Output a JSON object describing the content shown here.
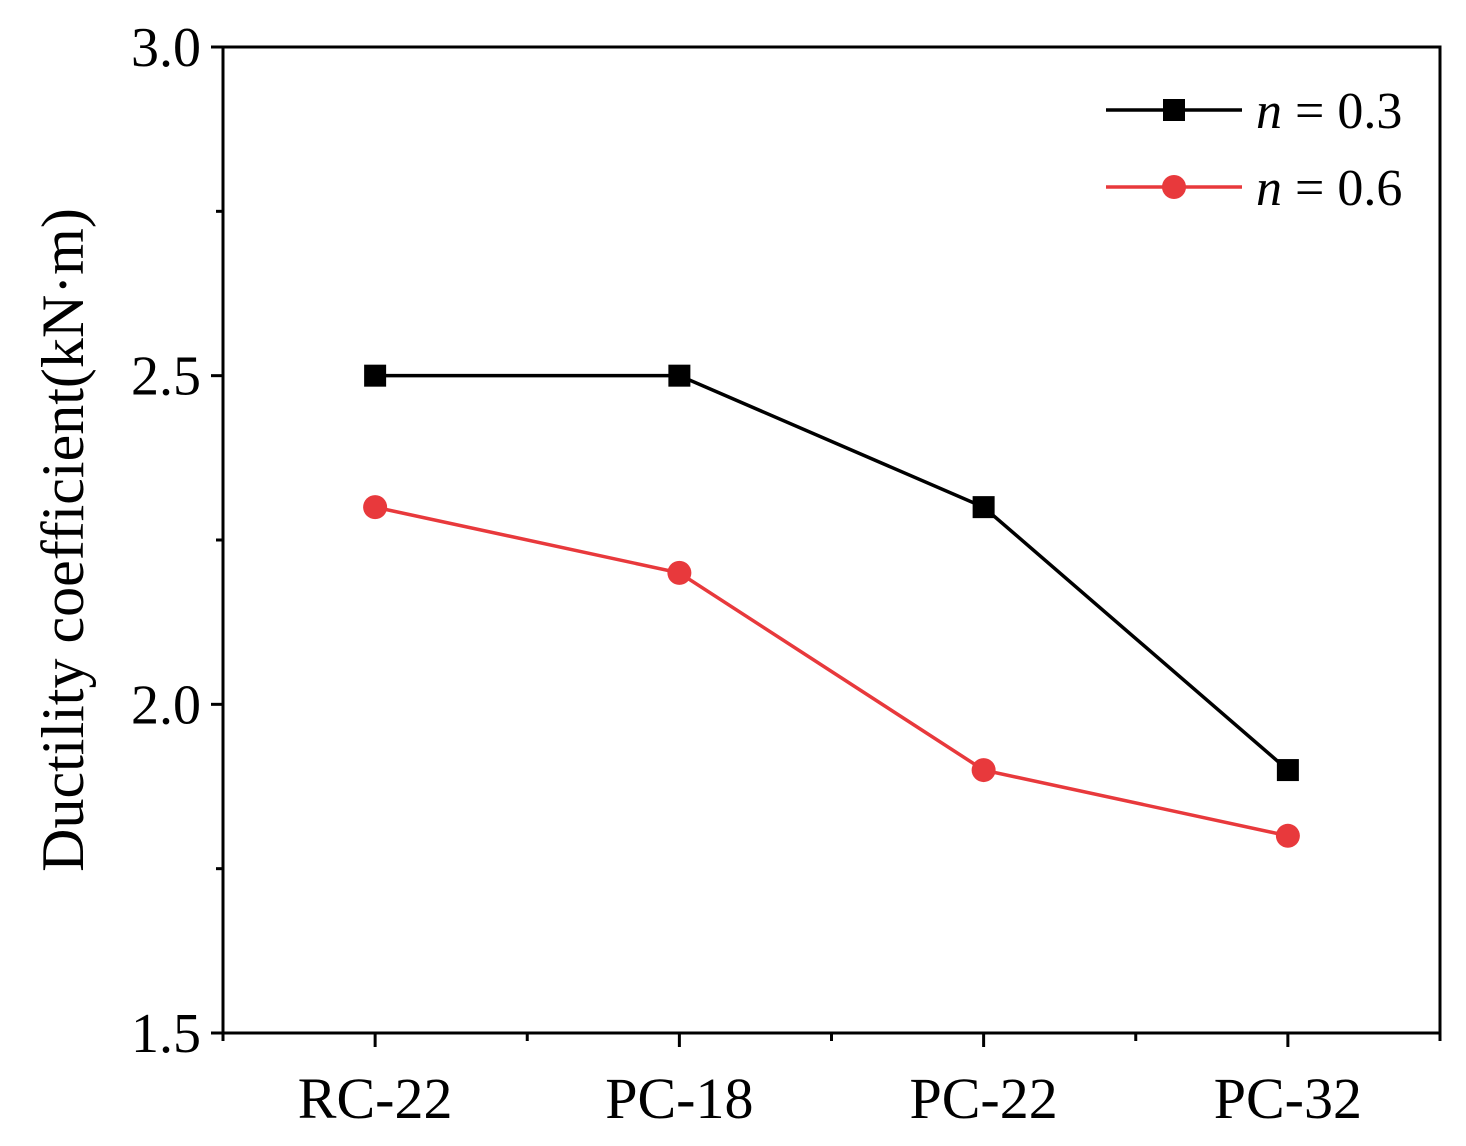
{
  "chart_data": {
    "type": "line",
    "title": "",
    "xlabel": "",
    "ylabel": "Ductility coefficient(kN·m)",
    "categories": [
      "RC-22",
      "PC-18",
      "PC-22",
      "PC-32"
    ],
    "ylim": [
      1.5,
      3.0
    ],
    "yticks": [
      "1.5",
      "2.0",
      "2.5",
      "3.0"
    ],
    "legend_position": "top-right",
    "series": [
      {
        "name": "n = 0.3",
        "legend_var": "n",
        "legend_rest": " = 0.3",
        "values": [
          2.5,
          2.5,
          2.3,
          1.9
        ],
        "color": "#000000",
        "marker": "square"
      },
      {
        "name": "n = 0.6",
        "legend_var": "n",
        "legend_rest": " = 0.6",
        "values": [
          2.3,
          2.2,
          1.9,
          1.8
        ],
        "color": "#e8393c",
        "marker": "circle"
      }
    ]
  }
}
